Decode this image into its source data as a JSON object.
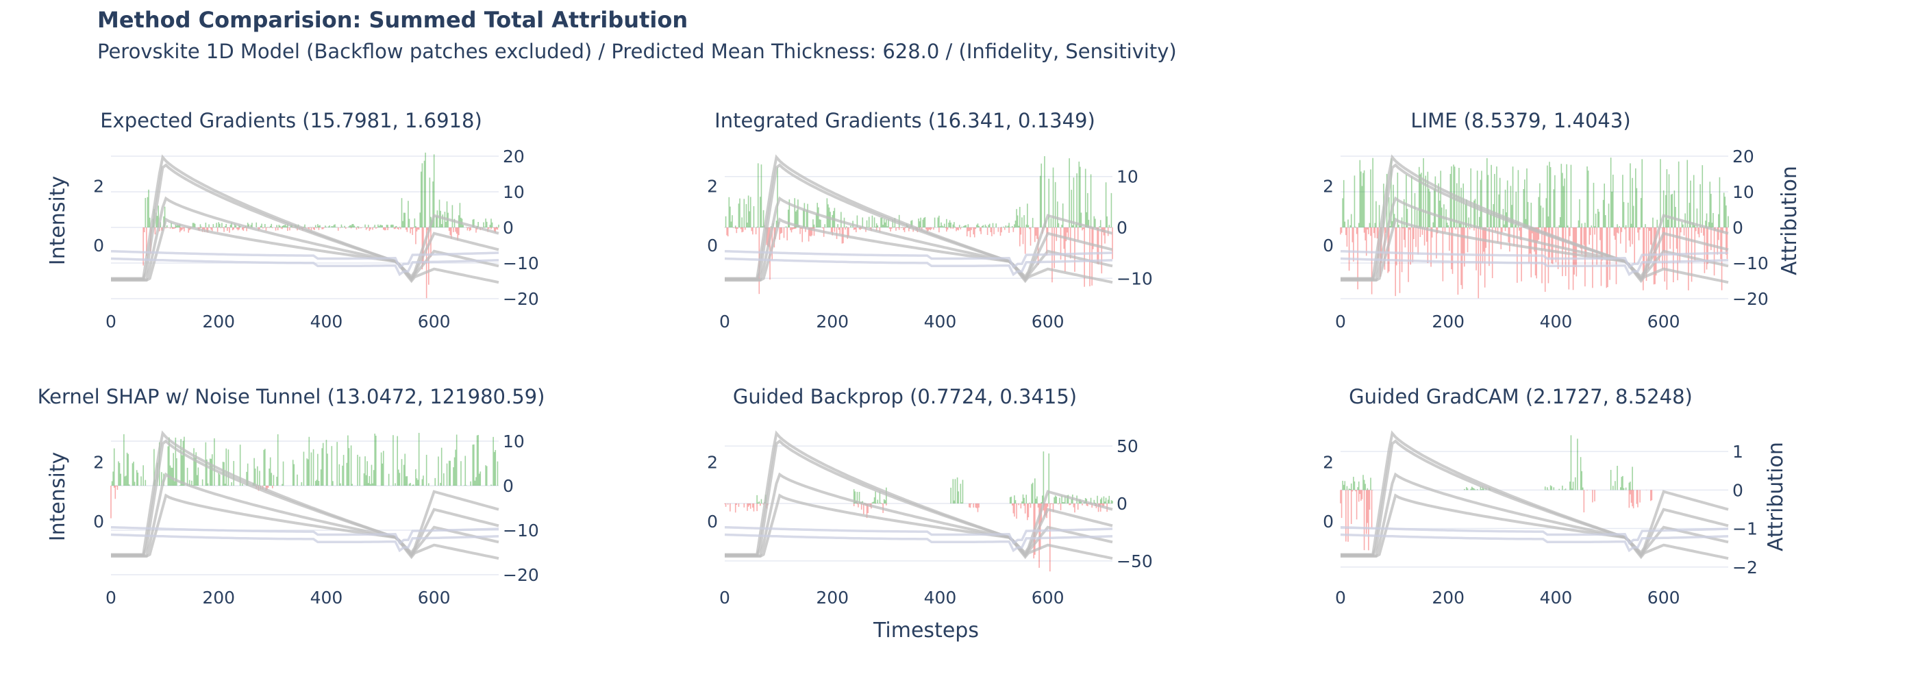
{
  "figure": {
    "title": "Method Comparision: Summed Total Attribution",
    "subtitle": "Perovskite 1D Model (Backflow patches excluded) / Predicted Mean Thickness: 628.0 / (Infidelity, Sensitivity)",
    "x_axis_label": "Timesteps",
    "left_axis_label": "Intensity",
    "right_axis_label": "Attribution"
  },
  "colors": {
    "positive": "#2ca02c",
    "negative": "#ef2f2f",
    "signal": "#bcbcbc",
    "signal_light": "#c9cde0",
    "grid": "#e6e9f2",
    "text": "#2a3f5f"
  },
  "chart_data": [
    {
      "type": "bar",
      "title": "Expected Gradients (15.7981, 1.6918)",
      "x_ticks": [
        0,
        200,
        400,
        600
      ],
      "xlim": [
        0,
        720
      ],
      "intensity_ticks": [
        0,
        2
      ],
      "intensity_range": [
        -1.8,
        3.0
      ],
      "attribution_ticks": [
        -20,
        -10,
        0,
        10,
        20
      ],
      "attribution_range": [
        -20,
        20
      ],
      "show_left_label": true,
      "show_right_label": false,
      "attribution_segments": [
        {
          "x": [
            60,
            75
          ],
          "amp": [
            -12,
            20
          ]
        },
        {
          "x": [
            75,
            100
          ],
          "amp": [
            -5,
            7
          ]
        },
        {
          "x": [
            100,
            280
          ],
          "amp": [
            -1.5,
            1.5
          ]
        },
        {
          "x": [
            280,
            540
          ],
          "amp": [
            -1,
            1
          ]
        },
        {
          "x": [
            540,
            575
          ],
          "amp": [
            -6,
            9
          ]
        },
        {
          "x": [
            575,
            600
          ],
          "amp": [
            -20,
            22
          ]
        },
        {
          "x": [
            600,
            650
          ],
          "amp": [
            -7,
            8
          ]
        },
        {
          "x": [
            650,
            720
          ],
          "amp": [
            -1.5,
            2.5
          ]
        }
      ]
    },
    {
      "type": "bar",
      "title": "Integrated Gradients (16.341, 0.1349)",
      "x_ticks": [
        0,
        200,
        400,
        600
      ],
      "xlim": [
        0,
        720
      ],
      "intensity_ticks": [
        0,
        2
      ],
      "intensity_range": [
        -1.8,
        3.0
      ],
      "attribution_ticks": [
        -10,
        0,
        10
      ],
      "attribution_range": [
        -14,
        14
      ],
      "show_left_label": false,
      "show_right_label": false,
      "attribution_segments": [
        {
          "x": [
            0,
            60
          ],
          "amp": [
            -2,
            7
          ]
        },
        {
          "x": [
            60,
            100
          ],
          "amp": [
            -14,
            14
          ]
        },
        {
          "x": [
            100,
            230
          ],
          "amp": [
            -4,
            6
          ]
        },
        {
          "x": [
            230,
            440
          ],
          "amp": [
            -1,
            2.5
          ]
        },
        {
          "x": [
            440,
            540
          ],
          "amp": [
            -2,
            1
          ]
        },
        {
          "x": [
            540,
            580
          ],
          "amp": [
            -6,
            5
          ]
        },
        {
          "x": [
            580,
            720
          ],
          "amp": [
            -12,
            14
          ]
        }
      ]
    },
    {
      "type": "bar",
      "title": "LIME (8.5379, 1.4043)",
      "x_ticks": [
        0,
        200,
        400,
        600
      ],
      "xlim": [
        0,
        720
      ],
      "intensity_ticks": [
        0,
        2
      ],
      "intensity_range": [
        -1.8,
        3.0
      ],
      "attribution_ticks": [
        -20,
        -10,
        0,
        10,
        20
      ],
      "attribution_range": [
        -20,
        20
      ],
      "show_left_label": false,
      "show_right_label": true,
      "attribution_segments": [
        {
          "x": [
            0,
            720
          ],
          "amp": [
            -20,
            20
          ]
        }
      ]
    },
    {
      "type": "bar",
      "title": "Kernel SHAP w/ Noise Tunnel (13.0472, 121980.59)",
      "x_ticks": [
        0,
        200,
        400,
        600
      ],
      "xlim": [
        0,
        720
      ],
      "intensity_ticks": [
        0,
        2
      ],
      "intensity_range": [
        -1.8,
        3.0
      ],
      "attribution_ticks": [
        -20,
        -10,
        0,
        10
      ],
      "attribution_range": [
        -20,
        12
      ],
      "show_left_label": true,
      "show_right_label": false,
      "attribution_segments": [
        {
          "x": [
            0,
            720
          ],
          "amp": [
            0,
            12
          ]
        },
        {
          "x": [
            0,
            12
          ],
          "amp": [
            -10,
            0
          ]
        },
        {
          "x": [
            270,
            300
          ],
          "amp": [
            -2,
            0
          ]
        }
      ]
    },
    {
      "type": "bar",
      "title": "Guided Backprop (0.7724, 0.3415)",
      "x_ticks": [
        0,
        200,
        400,
        600
      ],
      "xlim": [
        0,
        720
      ],
      "intensity_ticks": [
        0,
        2
      ],
      "intensity_range": [
        -1.8,
        3.0
      ],
      "attribution_ticks": [
        -50,
        0,
        50
      ],
      "attribution_range": [
        -62,
        62
      ],
      "show_left_label": false,
      "show_right_label": false,
      "attribution_segments": [
        {
          "x": [
            0,
            60
          ],
          "amp": [
            -10,
            -2
          ]
        },
        {
          "x": [
            60,
            80
          ],
          "amp": [
            -5,
            8
          ]
        },
        {
          "x": [
            240,
            300
          ],
          "amp": [
            -15,
            15
          ]
        },
        {
          "x": [
            420,
            445
          ],
          "amp": [
            0,
            25
          ]
        },
        {
          "x": [
            445,
            475
          ],
          "amp": [
            -8,
            0
          ]
        },
        {
          "x": [
            530,
            570
          ],
          "amp": [
            -15,
            12
          ]
        },
        {
          "x": [
            570,
            605
          ],
          "amp": [
            -62,
            62
          ]
        },
        {
          "x": [
            605,
            720
          ],
          "amp": [
            -8,
            8
          ]
        }
      ]
    },
    {
      "type": "bar",
      "title": "Guided GradCAM (2.1727, 8.5248)",
      "x_ticks": [
        0,
        200,
        400,
        600
      ],
      "xlim": [
        0,
        720
      ],
      "intensity_ticks": [
        0,
        2
      ],
      "intensity_range": [
        -1.8,
        3.0
      ],
      "attribution_ticks": [
        -2,
        -1,
        0,
        1
      ],
      "attribution_range": [
        -2.2,
        1.5
      ],
      "show_left_label": false,
      "show_right_label": true,
      "attribution_segments": [
        {
          "x": [
            0,
            60
          ],
          "amp": [
            -1.6,
            0.4
          ]
        },
        {
          "x": [
            230,
            280
          ],
          "amp": [
            0,
            0.1
          ]
        },
        {
          "x": [
            380,
            425
          ],
          "amp": [
            0,
            0.15
          ]
        },
        {
          "x": [
            425,
            450
          ],
          "amp": [
            0,
            1.45
          ]
        },
        {
          "x": [
            445,
            475
          ],
          "amp": [
            -0.7,
            0
          ]
        },
        {
          "x": [
            500,
            545
          ],
          "amp": [
            0,
            0.8
          ]
        },
        {
          "x": [
            535,
            580
          ],
          "amp": [
            -0.5,
            0
          ]
        }
      ]
    }
  ]
}
